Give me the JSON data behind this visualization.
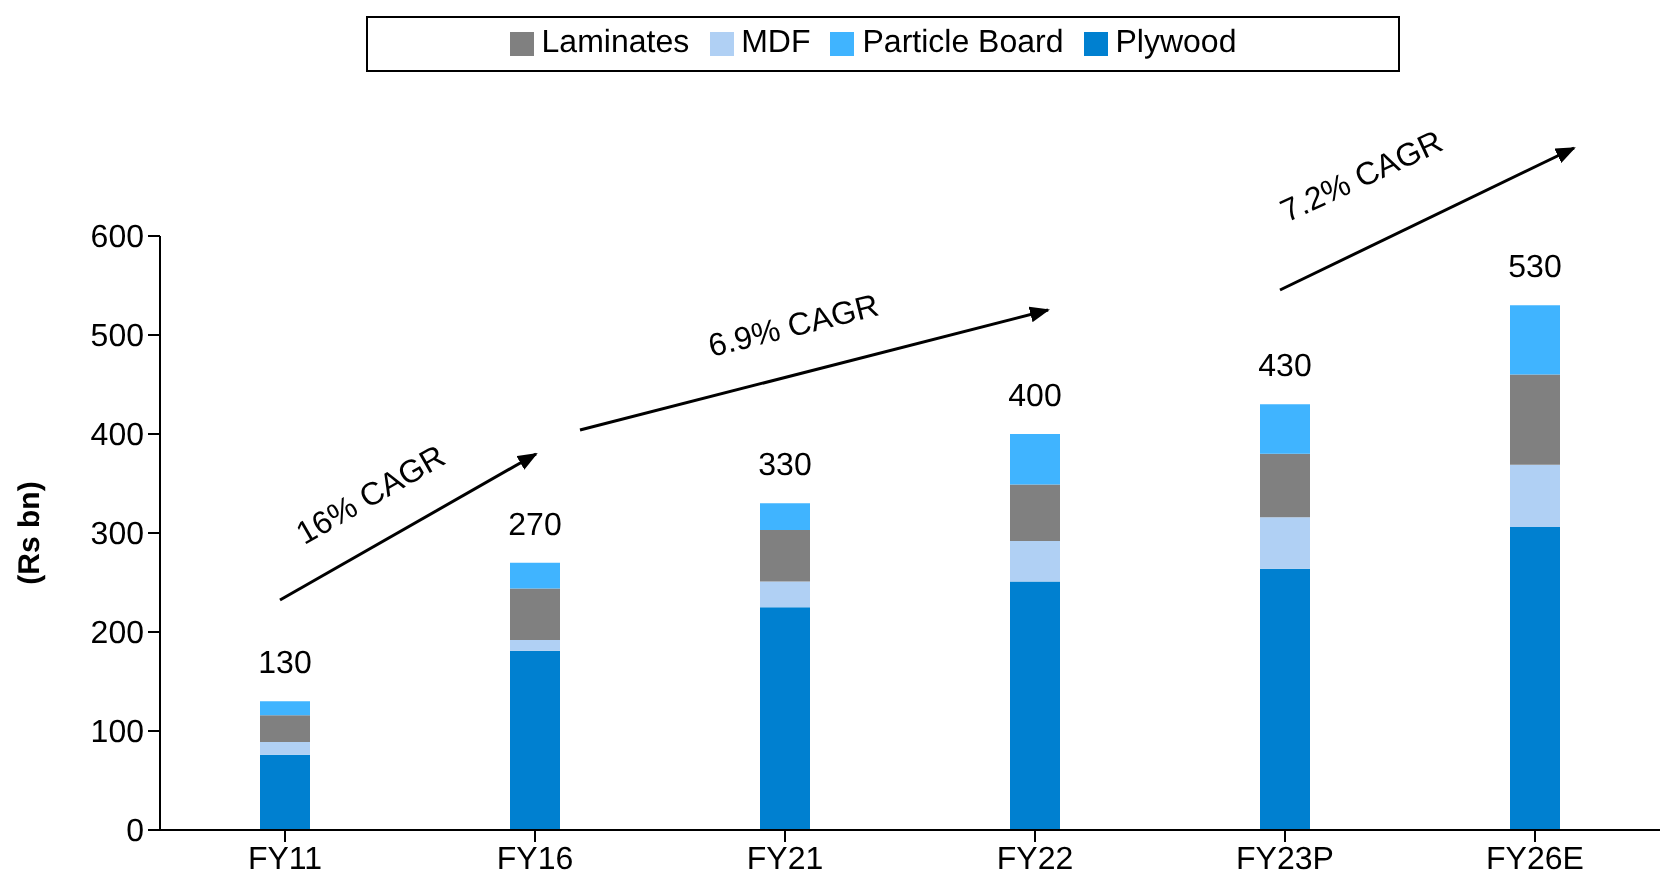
{
  "chart_data": {
    "type": "bar",
    "stacked": true,
    "ylabel": "(Rs bn)",
    "categories": [
      "FY11",
      "FY16",
      "FY21",
      "FY22",
      "FY23P",
      "FY26E"
    ],
    "series": [
      {
        "name": "Plywood",
        "color": "#0080d0",
        "values": [
          76,
          181,
          225,
          251,
          264,
          306
        ]
      },
      {
        "name": "MDF",
        "color": "#b0d0f4",
        "values": [
          13,
          11,
          26,
          41,
          52,
          63
        ]
      },
      {
        "name": "Laminates",
        "color": "#808080",
        "values": [
          27,
          52,
          52,
          57,
          64,
          91
        ]
      },
      {
        "name": "Particle Board",
        "color": "#40b4ff",
        "values": [
          14,
          26,
          27,
          51,
          50,
          70
        ]
      }
    ],
    "totals": [
      "130",
      "270",
      "330",
      "400",
      "430",
      "530"
    ],
    "ylim": [
      0,
      600
    ],
    "yticks": [
      0,
      100,
      200,
      300,
      400,
      500,
      600
    ],
    "grid": false,
    "legend": "top",
    "annotations": [
      "16% CAGR",
      "6.9% CAGR",
      "7.2% CAGR"
    ]
  }
}
